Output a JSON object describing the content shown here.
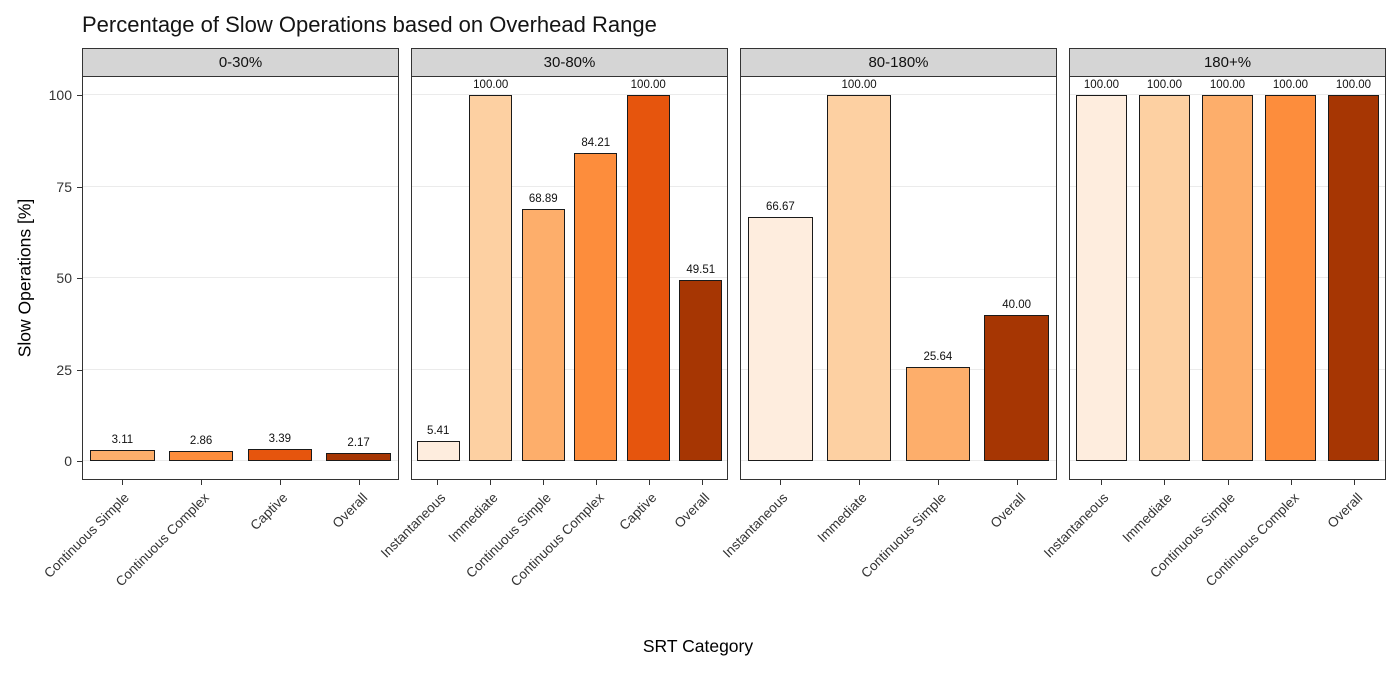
{
  "chart_data": {
    "type": "bar",
    "title": "Percentage of Slow Operations based on Overhead Range",
    "xlabel": "SRT Category",
    "ylabel": "Slow Operations [%]",
    "ylim": [
      0,
      100
    ],
    "y_ticks": [
      0,
      25,
      50,
      75,
      100
    ],
    "grid": true,
    "legend": "none",
    "value_label_format": "2dp",
    "palette": {
      "Instantaneous": "#FEEDDE",
      "Immediate": "#FDD0A2",
      "Continuous Simple": "#FDAE6B",
      "Continuous Complex": "#FD8D3C",
      "Captive": "#E6550D",
      "Overall": "#A63603"
    },
    "facets": [
      {
        "label": "0-30%",
        "categories": [
          "Continuous Simple",
          "Continuous Complex",
          "Captive",
          "Overall"
        ],
        "values": [
          3.11,
          2.86,
          3.39,
          2.17
        ]
      },
      {
        "label": "30-80%",
        "categories": [
          "Instantaneous",
          "Immediate",
          "Continuous Simple",
          "Continuous Complex",
          "Captive",
          "Overall"
        ],
        "values": [
          5.41,
          100.0,
          68.89,
          84.21,
          100.0,
          49.51
        ]
      },
      {
        "label": "80-180%",
        "categories": [
          "Instantaneous",
          "Immediate",
          "Continuous Simple",
          "Overall"
        ],
        "values": [
          66.67,
          100.0,
          25.64,
          40.0
        ]
      },
      {
        "label": "180+%",
        "categories": [
          "Instantaneous",
          "Immediate",
          "Continuous Simple",
          "Continuous Complex",
          "Overall"
        ],
        "values": [
          100.0,
          100.0,
          100.0,
          100.0,
          100.0
        ]
      }
    ]
  }
}
